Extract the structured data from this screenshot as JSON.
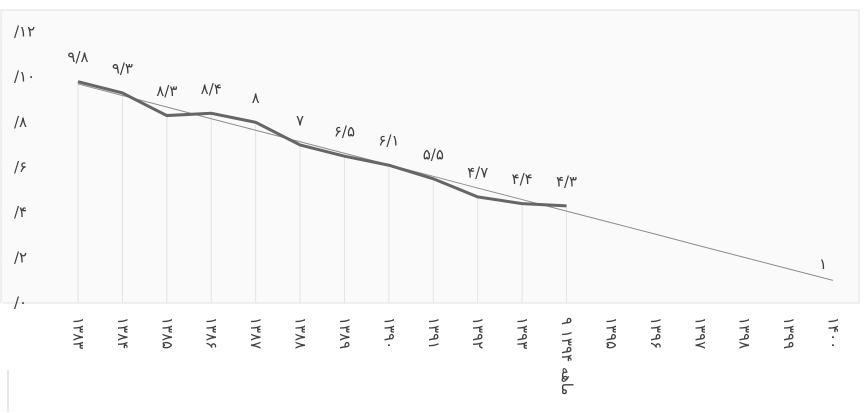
{
  "chart_data": {
    "type": "line",
    "categories": [
      "۱۳۸۳",
      "۱۳۸۴",
      "۱۳۸۵",
      "۱۳۸۶",
      "۱۳۸۷",
      "۱۳۸۸",
      "۱۳۸۹",
      "۱۳۹۰",
      "۱۳۹۱",
      "۱۳۹۲",
      "۱۳۹۳",
      "۹ ماهه ۱۳۹۴",
      "۱۳۹۵",
      "۱۳۹۶",
      "۱۳۹۷",
      "۱۳۹۸",
      "۱۳۹۹",
      "۱۴۰۰"
    ],
    "series": [
      {
        "color": "#666666",
        "width": 3,
        "values": [
          9.8,
          9.3,
          8.3,
          8.4,
          8,
          7,
          6.5,
          6.1,
          5.5,
          4.7,
          4.4,
          4.3,
          null,
          null,
          null,
          null,
          null,
          null
        ],
        "value_labels": [
          "۹/۸",
          "۹/۳",
          "۸/۳",
          "۸/۴",
          "۸",
          "۷",
          "۶/۵",
          "۶/۱",
          "۵/۵",
          "۴/۷",
          "۴/۴",
          "۴/۳",
          null,
          null,
          null,
          null,
          null,
          null
        ]
      },
      {
        "color": "#8c8c8c",
        "width": 1,
        "values": [
          9.7,
          9.19,
          8.68,
          8.16,
          7.65,
          7.14,
          6.63,
          6.12,
          5.61,
          5.09,
          4.58,
          4.07,
          3.56,
          3.05,
          2.53,
          2.02,
          1.51,
          1
        ],
        "value_labels": [
          null,
          null,
          null,
          null,
          null,
          null,
          null,
          null,
          null,
          null,
          null,
          null,
          null,
          null,
          null,
          null,
          null,
          "۱"
        ]
      }
    ],
    "ylim": [
      0,
      12
    ],
    "yticks": [
      {
        "value": 0,
        "label": "/۰"
      },
      {
        "value": 2,
        "label": "/۲"
      },
      {
        "value": 4,
        "label": "/۴"
      },
      {
        "value": 6,
        "label": "/۶"
      },
      {
        "value": 8,
        "label": "/۸"
      },
      {
        "value": 10,
        "label": "/۱۰"
      },
      {
        "value": 12,
        "label": "/۱۲"
      }
    ]
  }
}
